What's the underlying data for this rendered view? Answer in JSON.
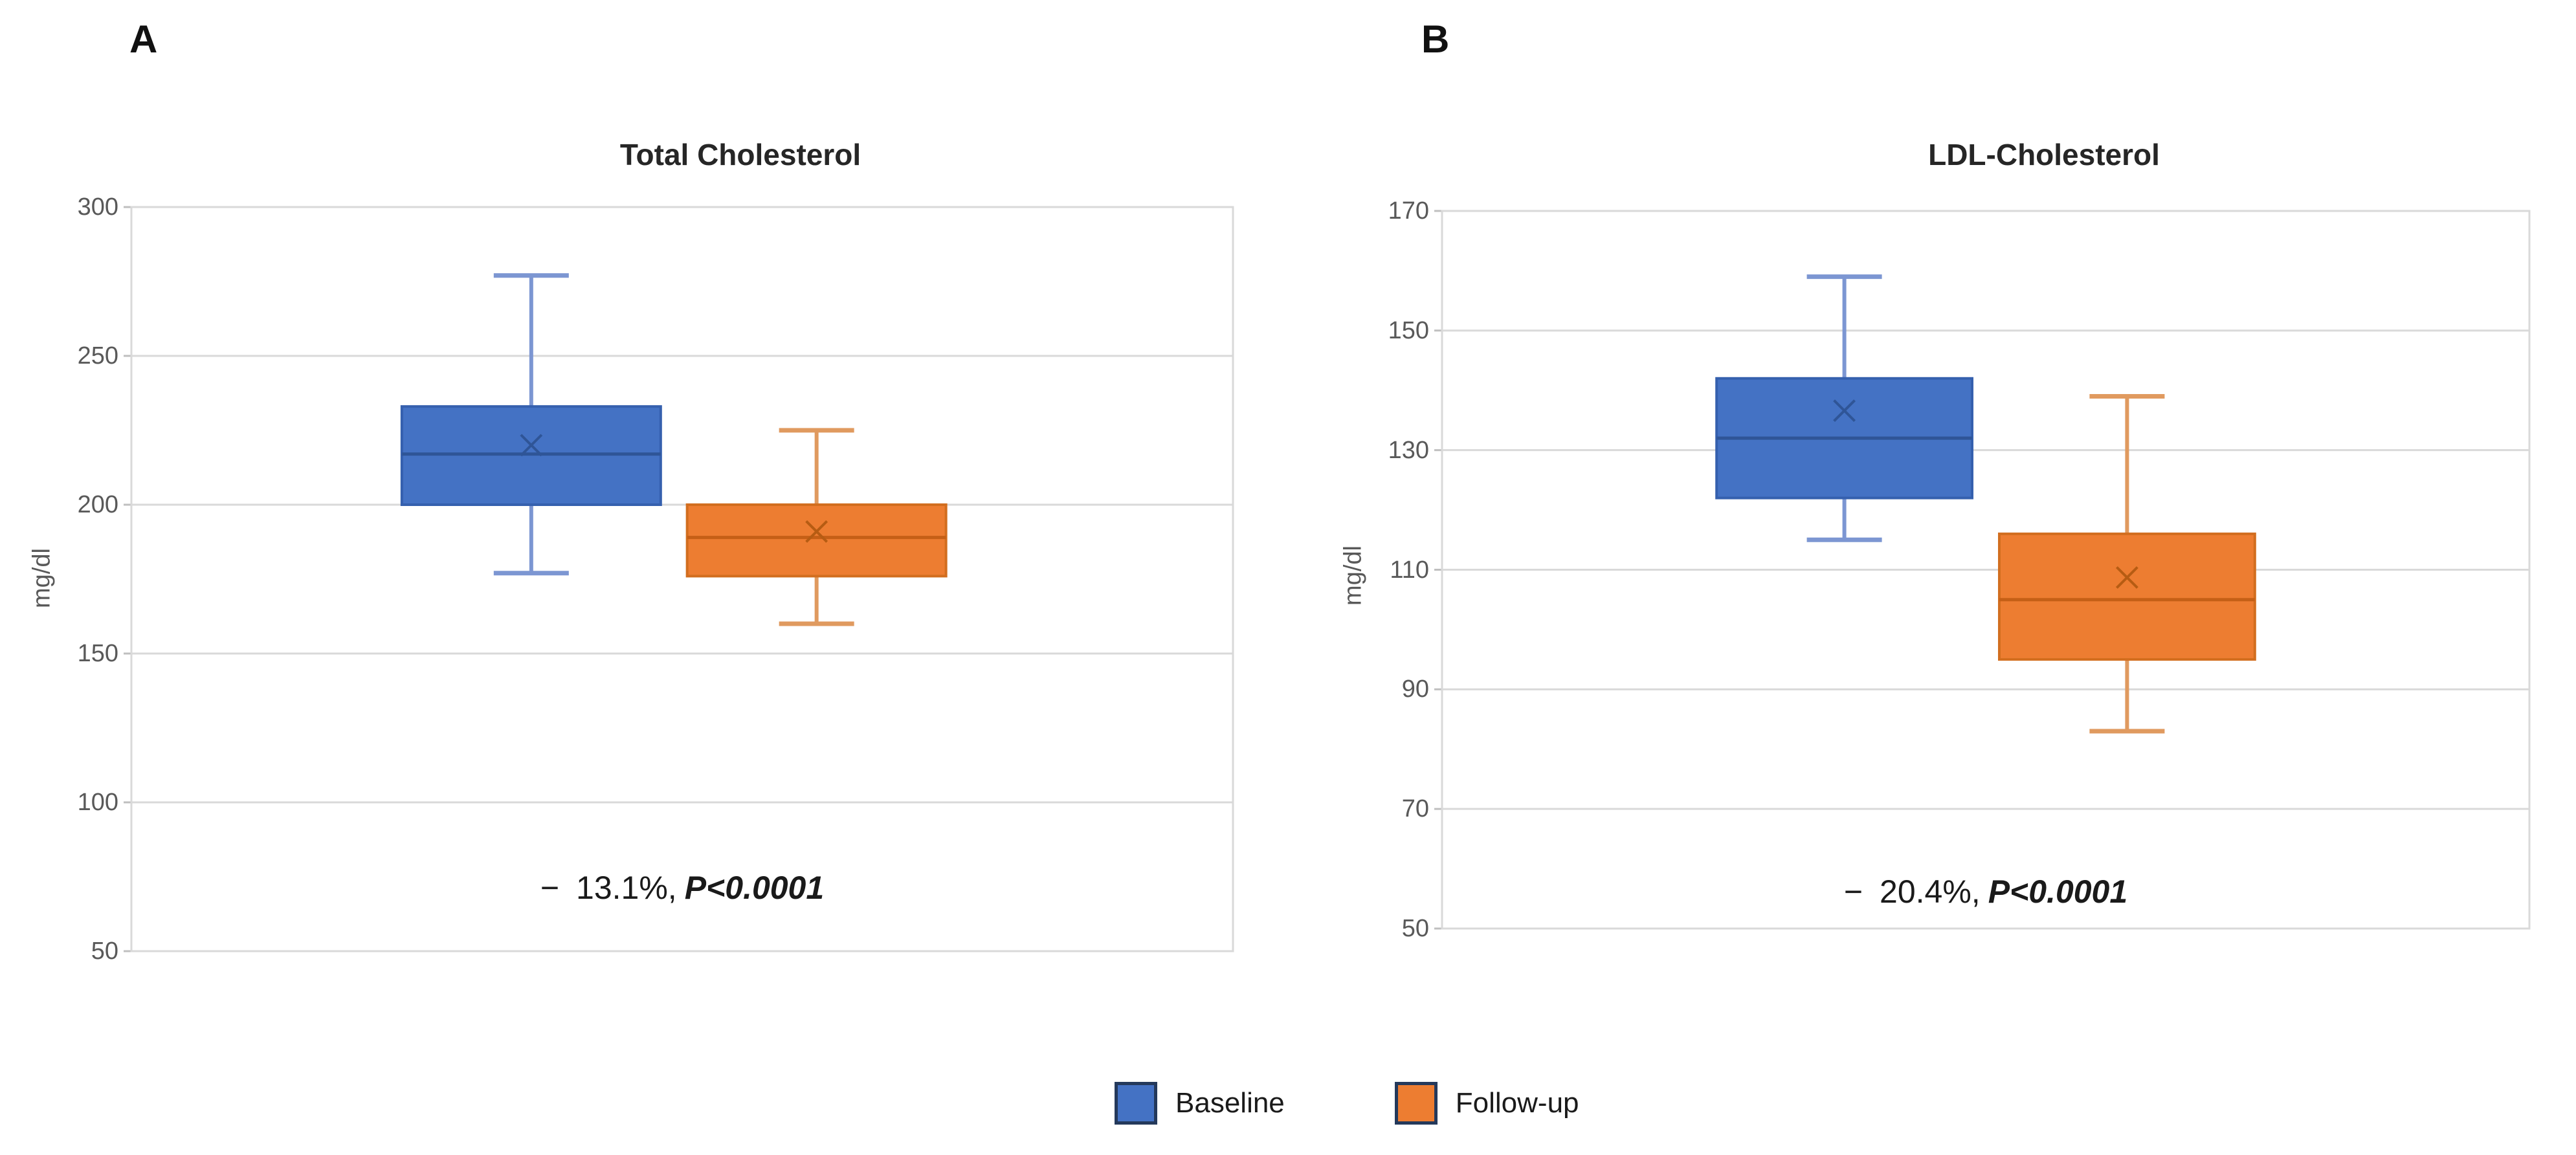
{
  "page": {
    "background": "#ffffff",
    "grid_color": "#d9d9d9",
    "tick_color": "#bfbfbf",
    "axis_text_color": "#595959"
  },
  "legend": {
    "swatch_border_color": "#24395B",
    "items": [
      {
        "label": "Baseline",
        "color": "#4472C4"
      },
      {
        "label": "Follow-up",
        "color": "#ED7D31"
      }
    ]
  },
  "series_styles": [
    {
      "name": "Baseline",
      "fill": "#4472C4",
      "border": "#3560AE",
      "median_color": "#2F5597",
      "whisker_color": "#7C96D2",
      "mean_color": "#2F5597"
    },
    {
      "name": "Follow-up",
      "fill": "#ED7D31",
      "border": "#D26E1F",
      "median_color": "#C55F16",
      "whisker_color": "#E09A5F",
      "mean_color": "#B65C13"
    }
  ],
  "chart_data": [
    {
      "type": "box",
      "panel_label": "A",
      "title": "Total Cholesterol",
      "xlabel": "",
      "ylabel": "mg/dl",
      "ylim": [
        50,
        300
      ],
      "yticks": [
        300,
        250,
        200,
        150,
        100,
        50
      ],
      "grid": true,
      "legend_position": "bottom",
      "categories": [
        "Baseline",
        "Follow-up"
      ],
      "series": [
        {
          "name": "Baseline",
          "min": 177,
          "q1": 200,
          "median": 217,
          "q3": 233,
          "max": 277,
          "mean": 220
        },
        {
          "name": "Follow-up",
          "min": 160,
          "q1": 176,
          "median": 189,
          "q3": 200,
          "max": 225,
          "mean": 191
        }
      ],
      "annotation": "− 13.1%, P<0.0001",
      "annotation_parts": {
        "minus": "−",
        "change": "13.1%,",
        "pvalue": "P<0.0001"
      }
    },
    {
      "type": "box",
      "panel_label": "B",
      "title": "LDL-Cholesterol",
      "xlabel": "",
      "ylabel": "mg/dl",
      "ylim": [
        50,
        170
      ],
      "yticks": [
        170,
        150,
        130,
        110,
        90,
        70,
        50
      ],
      "grid": true,
      "legend_position": "bottom",
      "categories": [
        "Baseline",
        "Follow-up"
      ],
      "series": [
        {
          "name": "Baseline",
          "min": 115,
          "q1": 122,
          "median": 132,
          "q3": 142,
          "max": 159,
          "mean": 136.6
        },
        {
          "name": "Follow-up",
          "min": 83,
          "q1": 95,
          "median": 105,
          "q3": 116,
          "max": 139,
          "mean": 108.7
        }
      ],
      "annotation": "− 20.4%, P<0.0001",
      "annotation_parts": {
        "minus": "−",
        "change": "20.4%,",
        "pvalue": "P<0.0001"
      }
    }
  ]
}
